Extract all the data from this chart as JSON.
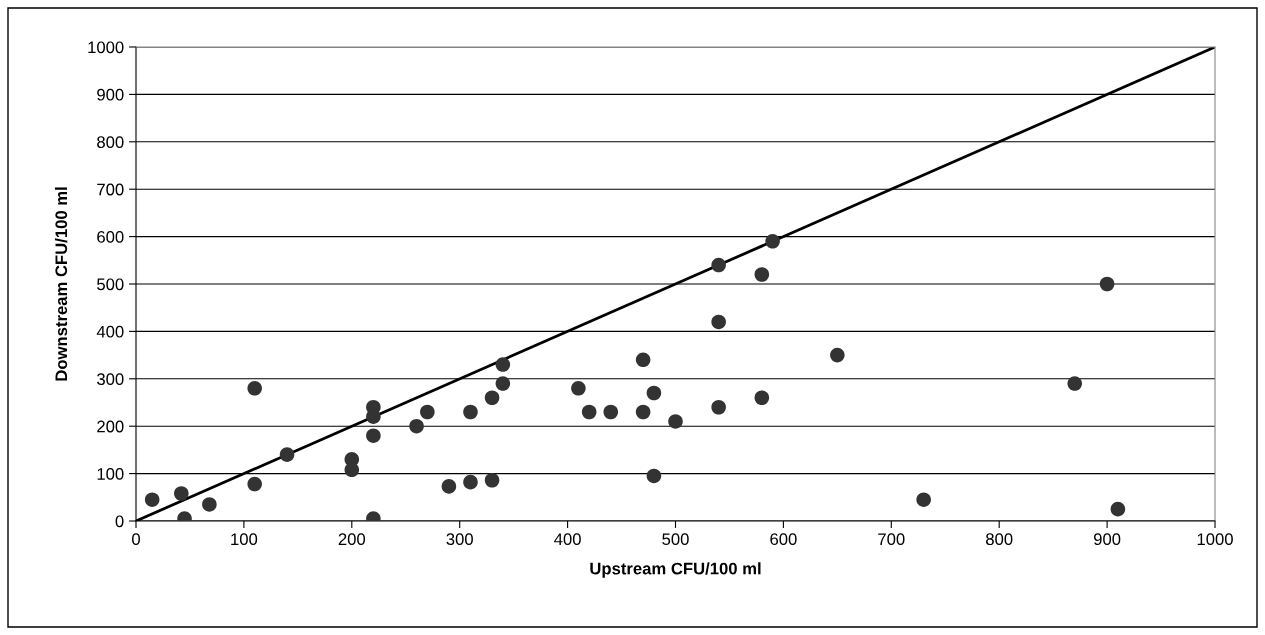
{
  "chart_data": {
    "type": "scatter",
    "xlabel": "Upstream CFU/100 ml",
    "ylabel": "Downstream CFU/100 ml",
    "xlim": [
      0,
      1000
    ],
    "ylim": [
      0,
      1000
    ],
    "xticks": [
      0,
      100,
      200,
      300,
      400,
      500,
      600,
      700,
      800,
      900,
      1000
    ],
    "yticks": [
      0,
      100,
      200,
      300,
      400,
      500,
      600,
      700,
      800,
      900,
      1000
    ],
    "grid": "y",
    "legend": false,
    "series": [
      {
        "color": "#333333",
        "marker": "circle",
        "x": [
          15,
          42,
          45,
          68,
          110,
          110,
          140,
          200,
          200,
          220,
          220,
          220,
          220,
          260,
          270,
          290,
          310,
          310,
          330,
          330,
          340,
          340,
          410,
          420,
          440,
          470,
          470,
          480,
          480,
          500,
          540,
          540,
          540,
          580,
          580,
          590,
          650,
          730,
          870,
          900,
          910
        ],
        "values": [
          45,
          58,
          5,
          35,
          280,
          78,
          140,
          130,
          108,
          240,
          220,
          180,
          5,
          200,
          230,
          73,
          230,
          82,
          260,
          86,
          330,
          290,
          280,
          230,
          230,
          340,
          230,
          270,
          95,
          210,
          540,
          420,
          240,
          520,
          260,
          590,
          350,
          45,
          290,
          500,
          25
        ]
      },
      {
        "type": "line",
        "color": "#000000",
        "marker": "none",
        "line_style": "solid",
        "x": [
          0,
          1000
        ],
        "values": [
          0,
          1000
        ]
      }
    ]
  }
}
